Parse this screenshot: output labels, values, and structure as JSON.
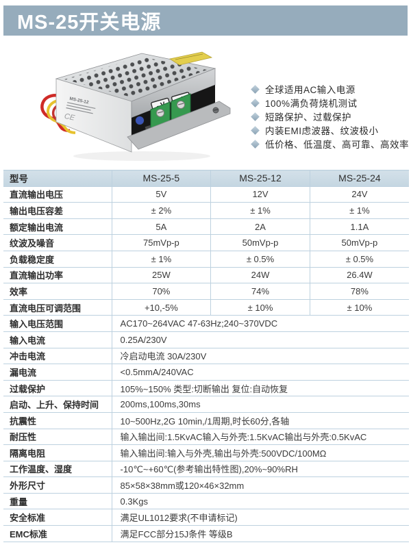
{
  "title": "MS-25开关电源",
  "features": [
    "全球适用AC输入电源",
    "100%满负荷烧机测试",
    "短路保护、过载保护",
    "内装EMI虑波器、纹波极小",
    "低价格、低温度、高可靠、高效率"
  ],
  "photo": {
    "terminal_neg": "- V",
    "terminal_pos": "+ V",
    "model_label": "MS-25-12",
    "ce_mark": "CE"
  },
  "table": {
    "header": {
      "label": "型号",
      "models": [
        "MS-25-5",
        "MS-25-12",
        "MS-25-24"
      ]
    },
    "spec_rows": [
      {
        "label": "直流输出电压",
        "values": [
          "5V",
          "12V",
          "24V"
        ]
      },
      {
        "label": "输出电压容差",
        "values": [
          "± 2%",
          "± 1%",
          "± 1%"
        ]
      },
      {
        "label": "额定输出电流",
        "values": [
          "5A",
          "2A",
          "1.1A"
        ]
      },
      {
        "label": "纹波及噪音",
        "values": [
          "75mVp-p",
          "50mVp-p",
          "50mVp-p"
        ]
      },
      {
        "label": "负载稳定度",
        "values": [
          "± 1%",
          "± 0.5%",
          "± 0.5%"
        ]
      },
      {
        "label": "直流输出功率",
        "values": [
          "25W",
          "24W",
          "26.4W"
        ]
      },
      {
        "label": "效率",
        "values": [
          "70%",
          "74%",
          "78%"
        ]
      },
      {
        "label": "直流电压可调范围",
        "values": [
          "+10,-5%",
          "± 10%",
          "± 10%"
        ]
      }
    ],
    "common_rows": [
      {
        "label": "输入电压范围",
        "value": "AC170~264VAC 47-63Hz;240~370VDC"
      },
      {
        "label": "输入电流",
        "value": "0.25A/230V"
      },
      {
        "label": "冲击电流",
        "value": "冷启动电流 30A/230V"
      },
      {
        "label": "漏电流",
        "value": "<0.5mmA/240VAC"
      },
      {
        "label": "过载保护",
        "value": "105%~150% 类型:切断输出  复位:自动恢复"
      },
      {
        "label": "启动、上升、保持时间",
        "value": "200ms,100ms,30ms"
      },
      {
        "label": "抗震性",
        "value": "10~500Hz,2G 10min,/1周期,时长60分,各轴"
      },
      {
        "label": "耐压性",
        "value": "输入输出间:1.5KvAC输入与外壳:1.5KvAC输出与外壳:0.5KvAC"
      },
      {
        "label": "隔离电阻",
        "value": "输入输出间:输入与外壳,输出与外壳:500VDC/100MΩ"
      },
      {
        "label": "工作温度、湿度",
        "value": "-10℃~+60℃(参考输出特性图),20%~90%RH"
      },
      {
        "label": "外形尺寸",
        "value": "85×58×38mm或120×46×32mm"
      },
      {
        "label": "重量",
        "value": "0.3Kgs"
      },
      {
        "label": "安全标准",
        "value": "满足UL1012要求(不申请标记)"
      },
      {
        "label": "EMC标准",
        "value": "满足FCC部分15J条件 等级B"
      }
    ]
  },
  "colors": {
    "banner_bg": "#96acbc",
    "banner_text": "#ffffff",
    "table_header_bg": "#c9d9e3",
    "table_border": "#bdd1df",
    "body_text": "#3a3a3a",
    "bullet": "#a9bdcb"
  }
}
